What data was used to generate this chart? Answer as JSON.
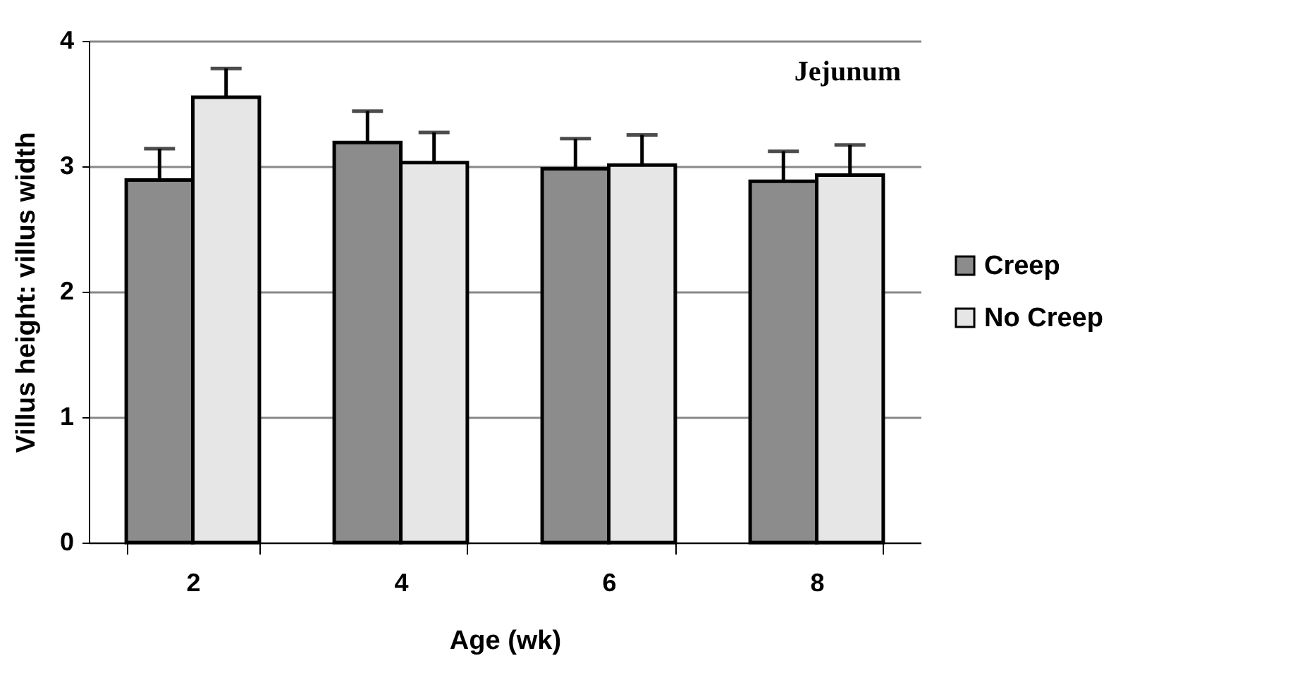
{
  "chart_data": {
    "type": "bar",
    "xlabel": "Age (wk)",
    "ylabel": "Villus height: villus width",
    "categories": [
      "2",
      "4",
      "6",
      "8"
    ],
    "series": [
      {
        "name": "Creep",
        "color": "#8c8c8c",
        "values": [
          2.89,
          3.19,
          2.98,
          2.88
        ],
        "errors": [
          [
            2.89,
            3.14
          ],
          [
            3.19,
            3.44
          ],
          [
            2.98,
            3.22
          ],
          [
            2.88,
            3.12
          ]
        ]
      },
      {
        "name": "No Creep",
        "color": "#e6e6e6",
        "values": [
          3.55,
          3.03,
          3.01,
          2.93
        ],
        "errors": [
          [
            3.55,
            3.78
          ],
          [
            3.03,
            3.27
          ],
          [
            3.01,
            3.25
          ],
          [
            2.93,
            3.17
          ]
        ]
      }
    ],
    "ylim": [
      0,
      4
    ],
    "yticks": [
      0,
      1,
      2,
      3,
      4
    ],
    "grid": "y",
    "legend": "right",
    "annotations": [
      "Jejunum"
    ]
  }
}
